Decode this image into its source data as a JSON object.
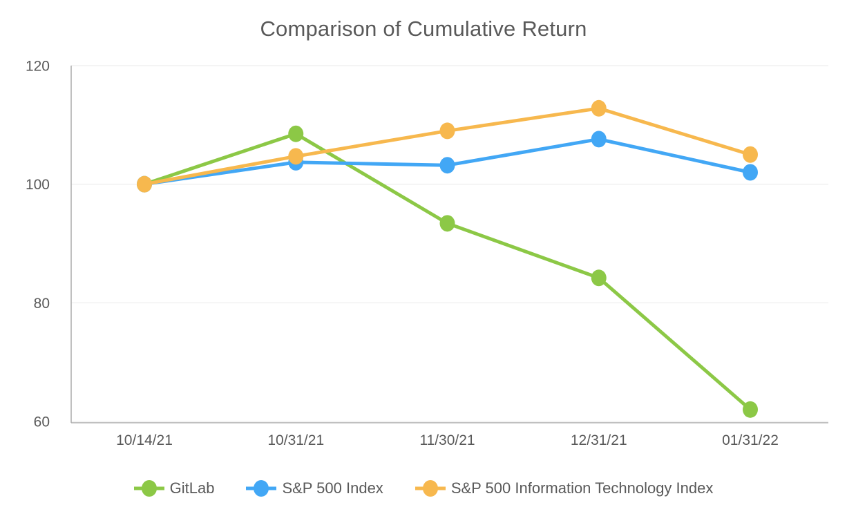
{
  "chart_data": {
    "type": "line",
    "title": "Comparison of Cumulative Return",
    "categories": [
      "10/14/21",
      "10/31/21",
      "11/30/21",
      "12/31/21",
      "01/31/22"
    ],
    "series": [
      {
        "name": "GitLab",
        "color": "#8cc846",
        "values": [
          100,
          108.5,
          93.4,
          84.2,
          62.0
        ]
      },
      {
        "name": "S&P 500 Index",
        "color": "#42a7f5",
        "values": [
          100,
          103.7,
          103.2,
          107.6,
          102.0
        ]
      },
      {
        "name": "S&P 500 Information Technology Index",
        "color": "#f7b84e",
        "values": [
          100,
          104.7,
          109.0,
          112.8,
          105.0
        ]
      }
    ],
    "ylim": [
      60,
      120
    ],
    "yticks": [
      60,
      80,
      100,
      120
    ],
    "grid": true,
    "legend_position": "bottom",
    "text_color": "#595959",
    "axis_color": "#ababab",
    "grid_color": "#e9e9e9",
    "background_color": "#ffffff",
    "marker_style": "circle",
    "line_width": 5
  }
}
